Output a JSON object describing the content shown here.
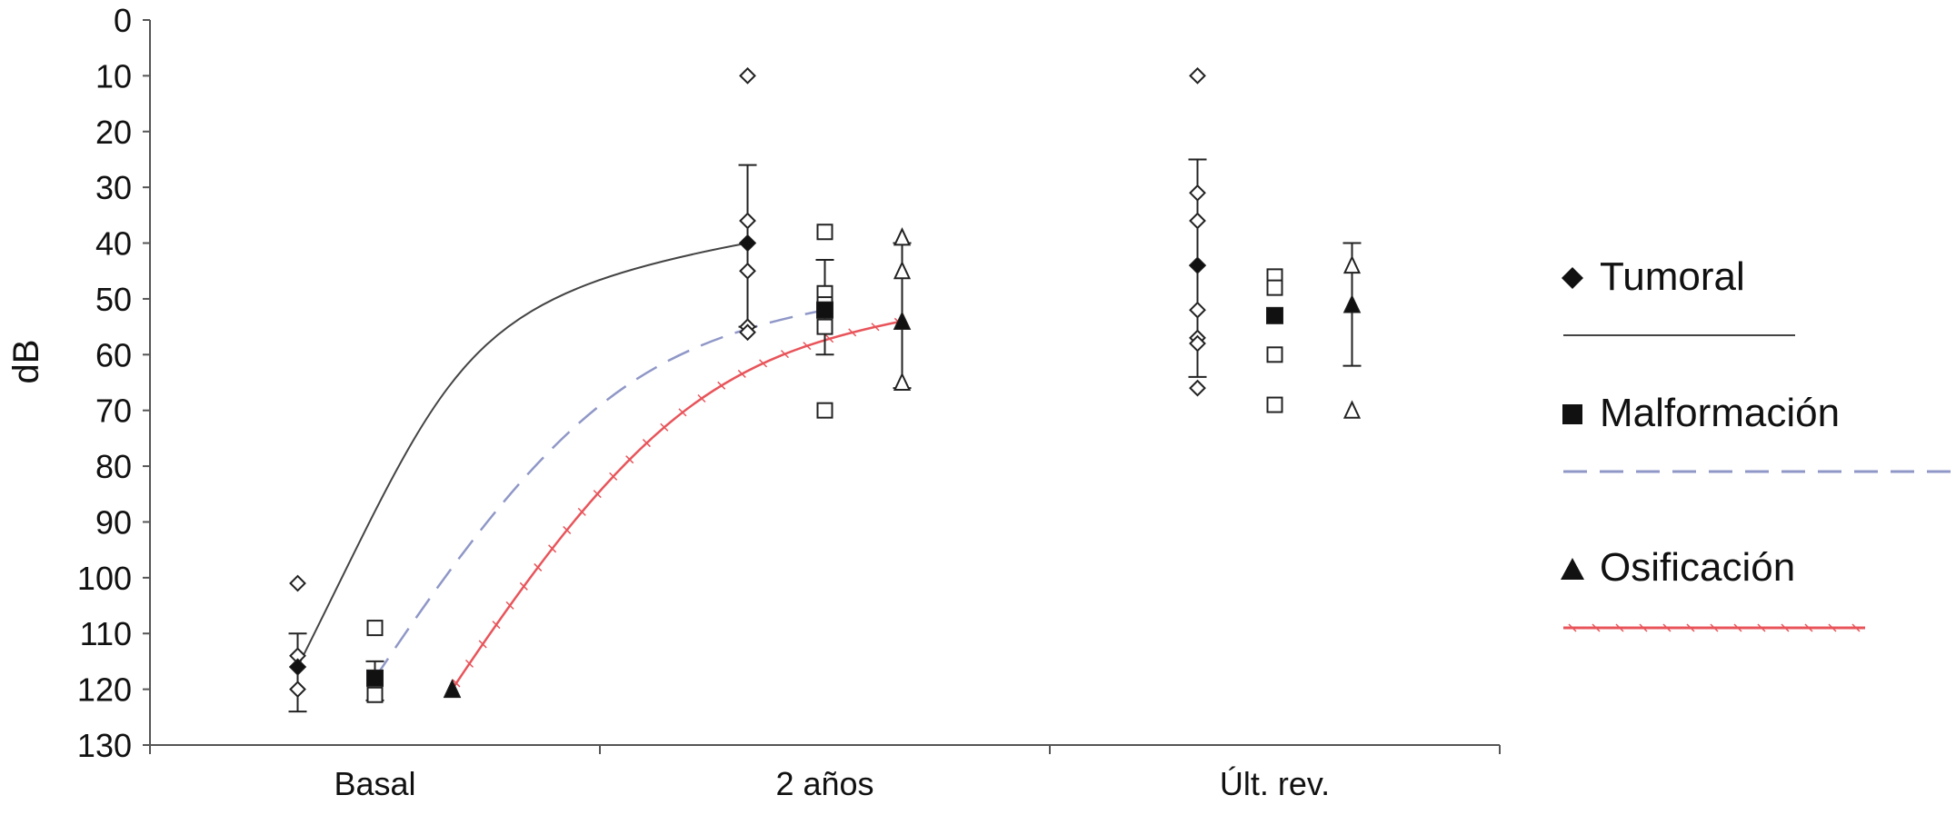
{
  "chart_data": {
    "type": "scatter",
    "title": "",
    "xlabel": "",
    "ylabel": "dB",
    "categories": [
      "Basal",
      "2 años",
      "Últ. rev."
    ],
    "ylim": [
      0,
      130
    ],
    "y_inverted": true,
    "y_ticks": [
      0,
      10,
      20,
      30,
      40,
      50,
      60,
      70,
      80,
      90,
      100,
      110,
      120,
      130
    ],
    "grid": false,
    "legend_position": "right",
    "series": [
      {
        "name": "Tumoral",
        "color": "#111111",
        "marker": "diamond",
        "line_style": "solid",
        "line_color": "#444444",
        "individual": [
          [
            101,
            114,
            120
          ],
          [
            10,
            36,
            45,
            55,
            56
          ],
          [
            10,
            31,
            36,
            52,
            57,
            58,
            66
          ]
        ],
        "mean": [
          116,
          40,
          44
        ],
        "error": [
          [
            110,
            124
          ],
          [
            26,
            55
          ],
          [
            25,
            64
          ]
        ],
        "trend": [
          116,
          40
        ]
      },
      {
        "name": "Malformación",
        "color": "#111111",
        "marker": "square",
        "line_style": "dashed",
        "line_color": "#8f97c7",
        "individual": [
          [
            109,
            120,
            121
          ],
          [
            38,
            49,
            51,
            55,
            70
          ],
          [
            46,
            48,
            60,
            69
          ]
        ],
        "mean": [
          118,
          52,
          53
        ],
        "error": [
          [
            115,
            122
          ],
          [
            43,
            60
          ],
          [
            null,
            null
          ]
        ],
        "trend": [
          118,
          52
        ]
      },
      {
        "name": "Osificación",
        "color": "#111111",
        "marker": "triangle",
        "line_style": "ticked",
        "line_color": "#e8545a",
        "individual": [
          [
            120
          ],
          [
            39,
            45,
            65
          ],
          [
            44,
            70
          ]
        ],
        "mean": [
          120,
          54,
          51
        ],
        "error": [
          [
            null,
            null
          ],
          [
            40,
            66
          ],
          [
            40,
            62
          ]
        ],
        "trend": [
          120,
          54
        ]
      }
    ]
  }
}
